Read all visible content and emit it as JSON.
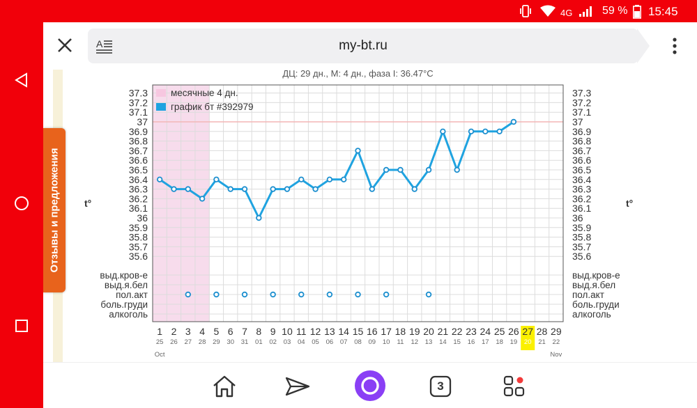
{
  "status_bar": {
    "network": "4G",
    "battery": "59 %",
    "time": "15:45"
  },
  "browser": {
    "url": "my-bt.ru",
    "tab_count": "3"
  },
  "feedback_tab": "Отзывы и предложения",
  "chart_data": {
    "type": "line",
    "title": "ДЦ: 29 дн., М: 4 дн., фаза I: 36.47°C",
    "ylabel": "t°",
    "ylim": [
      35.5,
      37.3
    ],
    "y_ticks": [
      "37.3",
      "37.2",
      "37.1",
      "37",
      "36.9",
      "36.8",
      "36.7",
      "36.6",
      "36.5",
      "36.4",
      "36.3",
      "36.2",
      "36.1",
      "36",
      "35.9",
      "35.8",
      "35.7",
      "35.6"
    ],
    "coverline": 37.0,
    "legend": [
      "месячные 4 дн.",
      "график бт #392979"
    ],
    "menses_days": 4,
    "x": [
      1,
      2,
      3,
      4,
      5,
      6,
      7,
      8,
      9,
      10,
      11,
      12,
      13,
      14,
      15,
      16,
      17,
      18,
      19,
      20,
      21,
      22,
      23,
      24,
      25,
      26,
      27,
      28,
      29
    ],
    "x_dates": [
      "25",
      "26",
      "27",
      "28",
      "29",
      "30",
      "31",
      "01",
      "02",
      "03",
      "04",
      "05",
      "06",
      "07",
      "08",
      "09",
      "10",
      "11",
      "12",
      "13",
      "14",
      "15",
      "16",
      "17",
      "18",
      "19",
      "20",
      "21",
      "22"
    ],
    "month_start": "Oct",
    "month_end": "Nov",
    "today_day": 27,
    "series": [
      {
        "name": "график бт #392979",
        "values": [
          36.4,
          36.3,
          36.3,
          36.2,
          36.4,
          36.3,
          36.3,
          36.0,
          36.3,
          36.3,
          36.4,
          36.3,
          36.4,
          36.4,
          36.7,
          36.3,
          36.5,
          36.5,
          36.3,
          36.5,
          36.9,
          36.5,
          36.9,
          36.9,
          36.9,
          37.0,
          null,
          null,
          null
        ]
      }
    ],
    "marker_rows": [
      "выд.кров-е",
      "выд.я.бел",
      "пол.акт",
      "боль.груди",
      "алкоголь"
    ],
    "marker_events": {
      "пол.акт": [
        3,
        5,
        7,
        9,
        11,
        13,
        15,
        17,
        20
      ]
    },
    "grid": true,
    "legend_position": "top-left"
  }
}
